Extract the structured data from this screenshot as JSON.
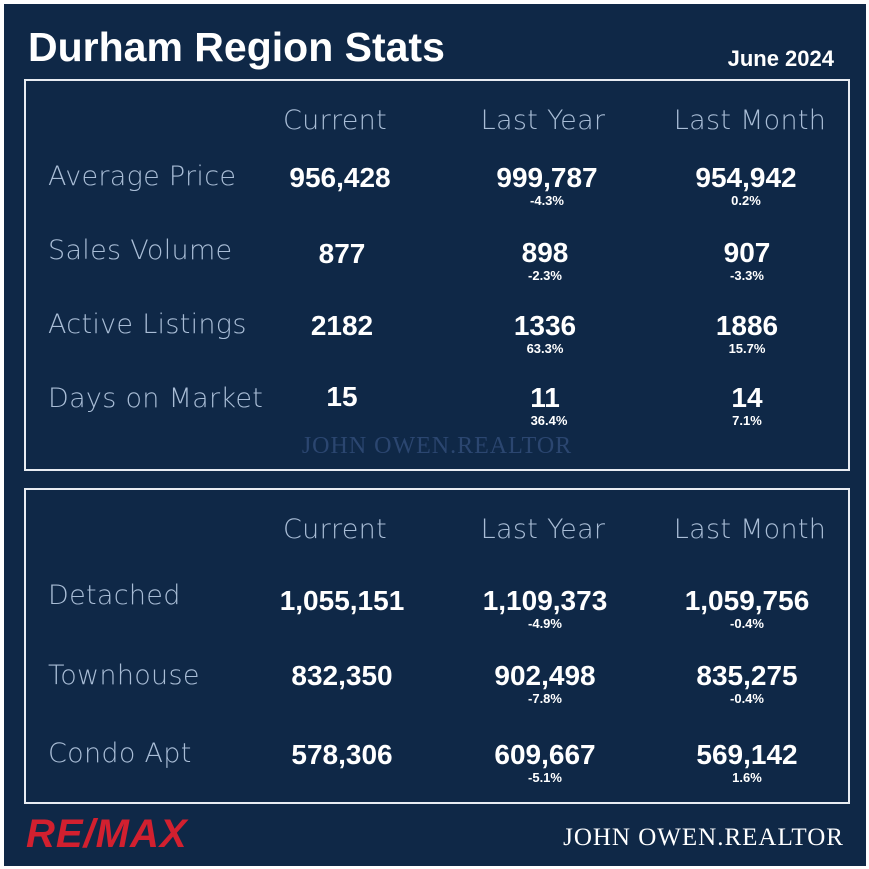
{
  "header": {
    "title": "Durham Region Stats",
    "date": "June 2024"
  },
  "columns": [
    "Current",
    "Last Year",
    "Last Month"
  ],
  "market_table": {
    "rows": [
      {
        "label": "Average Price",
        "current": "956,428",
        "last_year": "999,787",
        "last_year_change": "-4.3%",
        "last_month": "954,942",
        "last_month_change": "0.2%"
      },
      {
        "label": "Sales Volume",
        "current": "877",
        "last_year": "898",
        "last_year_change": "-2.3%",
        "last_month": "907",
        "last_month_change": "-3.3%"
      },
      {
        "label": "Active Listings",
        "current": "2182",
        "last_year": "1336",
        "last_year_change": "63.3%",
        "last_month": "1886",
        "last_month_change": "15.7%"
      },
      {
        "label": "Days on Market",
        "current": "15",
        "last_year": "11",
        "last_year_change": "36.4%",
        "last_month": "14",
        "last_month_change": "7.1%"
      }
    ],
    "watermark": "JOHN OWEN.REALTOR"
  },
  "type_table": {
    "rows": [
      {
        "label": "Detached",
        "current": "1,055,151",
        "last_year": "1,109,373",
        "last_year_change": "-4.9%",
        "last_month": "1,059,756",
        "last_month_change": "-0.4%"
      },
      {
        "label": "Townhouse",
        "current": "832,350",
        "last_year": "902,498",
        "last_year_change": "-7.8%",
        "last_month": "835,275",
        "last_month_change": "-0.4%"
      },
      {
        "label": "Condo Apt",
        "current": "578,306",
        "last_year": "609,667",
        "last_year_change": "-5.1%",
        "last_month": "569,142",
        "last_month_change": "1.6%"
      }
    ]
  },
  "footer": {
    "brand": "RE/MAX",
    "signature": "JOHN OWEN.REALTOR"
  },
  "colors": {
    "background": "#0f2847",
    "label": "#a9bdd6",
    "brand": "#d2202f",
    "border": "#e8ecf2"
  }
}
